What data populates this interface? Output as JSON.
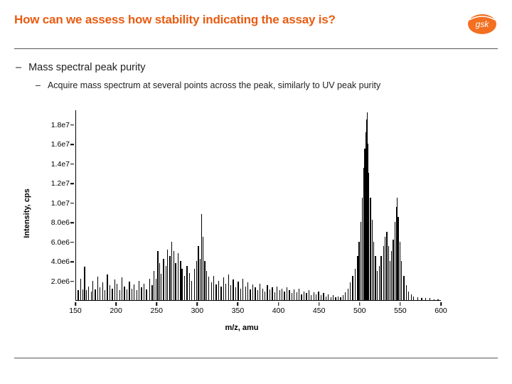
{
  "title": "How can we assess how stability indicating the assay is?",
  "logo": {
    "text": "gsk",
    "bg": "#f36f21",
    "fg": "#ffffff"
  },
  "bullets": {
    "l1": "Mass spectral peak purity",
    "l2": "Acquire mass spectrum at several points across the peak, similarly to UV peak purity"
  },
  "chart": {
    "type": "mass-spectrum",
    "y_label": "Intensity, cps",
    "x_label": "m/z, amu",
    "xlim": [
      150,
      600
    ],
    "ylim": [
      0,
      19500000.0
    ],
    "y_ticks": [
      "2.0e6",
      "4.0e6",
      "6.0e6",
      "8.0e6",
      "1.0e7",
      "1.2e7",
      "1.4e7",
      "1.6e7",
      "1.8e7"
    ],
    "y_tick_values": [
      2000000.0,
      4000000.0,
      6000000.0,
      8000000.0,
      10000000.0,
      12000000.0,
      14000000.0,
      16000000.0,
      18000000.0
    ],
    "x_ticks": [
      150,
      200,
      250,
      300,
      350,
      400,
      450,
      500,
      550,
      600
    ],
    "background_color": "#ffffff",
    "line_color": "#000000",
    "axis_color": "#000000",
    "tick_fontsize": 10.5,
    "label_fontsize": 11,
    "label_fontweight": "bold",
    "peaks": [
      [
        152,
        1000000.0
      ],
      [
        155,
        2200000.0
      ],
      [
        158,
        1100000.0
      ],
      [
        160,
        3400000.0
      ],
      [
        162,
        1000000.0
      ],
      [
        165,
        1400000.0
      ],
      [
        168,
        900000.0
      ],
      [
        170,
        2000000.0
      ],
      [
        173,
        1100000.0
      ],
      [
        176,
        2400000.0
      ],
      [
        179,
        1300000.0
      ],
      [
        182,
        1800000.0
      ],
      [
        185,
        1000000.0
      ],
      [
        188,
        2600000.0
      ],
      [
        191,
        1500000.0
      ],
      [
        194,
        1200000.0
      ],
      [
        197,
        2100000.0
      ],
      [
        200,
        1700000.0
      ],
      [
        203,
        1000000.0
      ],
      [
        206,
        2300000.0
      ],
      [
        209,
        1400000.0
      ],
      [
        212,
        1100000.0
      ],
      [
        215,
        1900000.0
      ],
      [
        218,
        1200000.0
      ],
      [
        221,
        1600000.0
      ],
      [
        224,
        1000000.0
      ],
      [
        227,
        2000000.0
      ],
      [
        230,
        1300000.0
      ],
      [
        233,
        1700000.0
      ],
      [
        236,
        1100000.0
      ],
      [
        240,
        2200000.0
      ],
      [
        243,
        1500000.0
      ],
      [
        245,
        3000000.0
      ],
      [
        248,
        2200000.0
      ],
      [
        250,
        5000000.0
      ],
      [
        252,
        3800000.0
      ],
      [
        254,
        2700000.0
      ],
      [
        257,
        4200000.0
      ],
      [
        260,
        3500000.0
      ],
      [
        262,
        5200000.0
      ],
      [
        265,
        4500000.0
      ],
      [
        267,
        6000000.0
      ],
      [
        270,
        5000000.0
      ],
      [
        272,
        3800000.0
      ],
      [
        275,
        4800000.0
      ],
      [
        278,
        4000000.0
      ],
      [
        280,
        3200000.0
      ],
      [
        283,
        2500000.0
      ],
      [
        286,
        3500000.0
      ],
      [
        289,
        2800000.0
      ],
      [
        292,
        2000000.0
      ],
      [
        295,
        3200000.0
      ],
      [
        298,
        4000000.0
      ],
      [
        300,
        5500000.0
      ],
      [
        302,
        4200000.0
      ],
      [
        304,
        8800000.0
      ],
      [
        306,
        6500000.0
      ],
      [
        308,
        4000000.0
      ],
      [
        310,
        3000000.0
      ],
      [
        313,
        2400000.0
      ],
      [
        316,
        1800000.0
      ],
      [
        319,
        2500000.0
      ],
      [
        322,
        1600000.0
      ],
      [
        325,
        2000000.0
      ],
      [
        328,
        1400000.0
      ],
      [
        331,
        2300000.0
      ],
      [
        334,
        1700000.0
      ],
      [
        337,
        2600000.0
      ],
      [
        340,
        1500000.0
      ],
      [
        343,
        2100000.0
      ],
      [
        346,
        1300000.0
      ],
      [
        349,
        1900000.0
      ],
      [
        352,
        1200000.0
      ],
      [
        355,
        2200000.0
      ],
      [
        358,
        1400000.0
      ],
      [
        361,
        1800000.0
      ],
      [
        364,
        1100000.0
      ],
      [
        367,
        1600000.0
      ],
      [
        370,
        1300000.0
      ],
      [
        373,
        1000000.0
      ],
      [
        376,
        1700000.0
      ],
      [
        379,
        1200000.0
      ],
      [
        382,
        900000.0
      ],
      [
        385,
        1500000.0
      ],
      [
        388,
        1100000.0
      ],
      [
        391,
        1300000.0
      ],
      [
        394,
        800000.0
      ],
      [
        397,
        1400000.0
      ],
      [
        400,
        1000000.0
      ],
      [
        403,
        1200000.0
      ],
      [
        406,
        900000.0
      ],
      [
        409,
        1300000.0
      ],
      [
        412,
        1000000.0
      ],
      [
        415,
        700000.0
      ],
      [
        418,
        1100000.0
      ],
      [
        421,
        800000.0
      ],
      [
        424,
        1200000.0
      ],
      [
        427,
        600000.0
      ],
      [
        430,
        900000.0
      ],
      [
        433,
        700000.0
      ],
      [
        436,
        1000000.0
      ],
      [
        439,
        500000.0
      ],
      [
        442,
        800000.0
      ],
      [
        445,
        600000.0
      ],
      [
        448,
        900000.0
      ],
      [
        451,
        500000.0
      ],
      [
        454,
        700000.0
      ],
      [
        457,
        400000.0
      ],
      [
        460,
        600000.0
      ],
      [
        463,
        300000.0
      ],
      [
        466,
        500000.0
      ],
      [
        469,
        300000.0
      ],
      [
        472,
        400000.0
      ],
      [
        475,
        300000.0
      ],
      [
        478,
        500000.0
      ],
      [
        481,
        800000.0
      ],
      [
        484,
        1200000.0
      ],
      [
        487,
        1800000.0
      ],
      [
        490,
        2500000.0
      ],
      [
        493,
        3200000.0
      ],
      [
        496,
        4500000.0
      ],
      [
        498,
        6000000.0
      ],
      [
        500,
        8000000.0
      ],
      [
        502,
        10500000.0
      ],
      [
        504,
        13500000.0
      ],
      [
        505,
        15500000.0
      ],
      [
        506,
        17200000.0
      ],
      [
        507,
        18500000.0
      ],
      [
        508,
        19200000.0
      ],
      [
        509,
        16000000.0
      ],
      [
        510,
        13000000.0
      ],
      [
        512,
        10500000.0
      ],
      [
        514,
        8200000.0
      ],
      [
        516,
        6000000.0
      ],
      [
        518,
        4500000.0
      ],
      [
        520,
        3000000.0
      ],
      [
        523,
        3500000.0
      ],
      [
        525,
        4500000.0
      ],
      [
        528,
        5500000.0
      ],
      [
        530,
        6500000.0
      ],
      [
        532,
        7000000.0
      ],
      [
        534,
        5500000.0
      ],
      [
        536,
        4000000.0
      ],
      [
        538,
        5000000.0
      ],
      [
        540,
        6200000.0
      ],
      [
        542,
        8000000.0
      ],
      [
        544,
        9500000.0
      ],
      [
        545,
        10500000.0
      ],
      [
        546,
        8500000.0
      ],
      [
        548,
        6000000.0
      ],
      [
        550,
        4000000.0
      ],
      [
        553,
        2500000.0
      ],
      [
        556,
        1500000.0
      ],
      [
        559,
        900000.0
      ],
      [
        562,
        600000.0
      ],
      [
        565,
        400000.0
      ],
      [
        570,
        300000.0
      ],
      [
        575,
        200000.0
      ],
      [
        580,
        200000.0
      ],
      [
        585,
        200000.0
      ],
      [
        590,
        100000.0
      ],
      [
        595,
        100000.0
      ]
    ]
  },
  "colors": {
    "title": "#e85c12",
    "rule": "#555555",
    "text": "#222222"
  }
}
